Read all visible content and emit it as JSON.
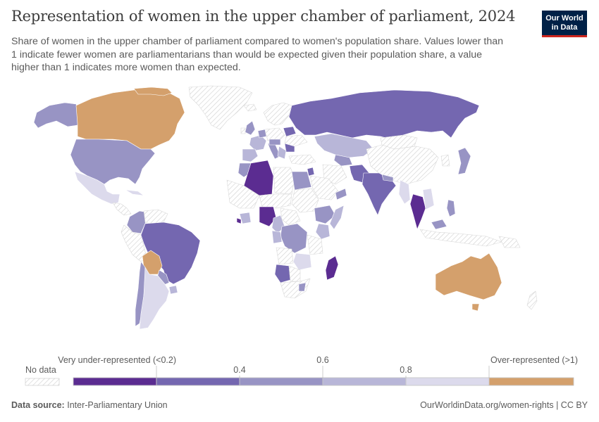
{
  "title": "Representation of women in the upper chamber of parliament, 2024",
  "subtitle": "Share of women in the upper chamber of parliament compared to women's population share. Values lower than 1 indicate fewer women are parliamentarians than would be expected given their population share, a value higher than 1 indicates more women than expected.",
  "logo": {
    "line1": "Our World",
    "line2": "in Data"
  },
  "legend": {
    "no_data_label": "No data",
    "bins": [
      {
        "label": "Very under-represented (<0.2)",
        "color": "#5b2c91"
      },
      {
        "label": "0.4",
        "color": "#7467b0"
      },
      {
        "label": "0.6",
        "color": "#9894c4"
      },
      {
        "label": "0.8",
        "color": "#b8b6d8"
      },
      {
        "label": "",
        "color": "#dcdaec"
      },
      {
        "label": "Over-represented (>1)",
        "color": "#d4a06c"
      }
    ]
  },
  "colors": {
    "no_data_hatch": "#cfcfcf",
    "very_under": "#5b2c91",
    "band_1": "#7467b0",
    "band_2": "#9894c4",
    "band_3": "#b8b6d8",
    "band_4": "#dcdaec",
    "over": "#d4a06c"
  },
  "footer": {
    "source_label": "Data source:",
    "source_value": "Inter-Parliamentary Union",
    "url": "OurWorldinData.org/women-rights | CC BY"
  }
}
